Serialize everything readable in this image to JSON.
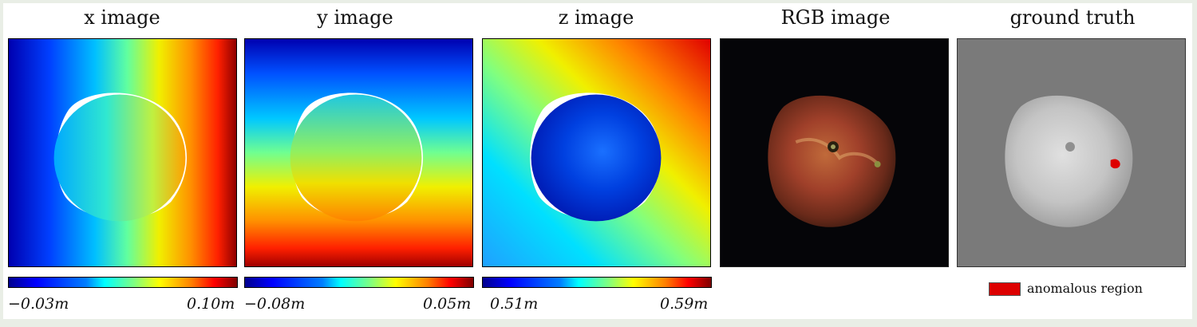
{
  "panels": [
    {
      "title": "x image"
    },
    {
      "title": "y image"
    },
    {
      "title": "z image"
    },
    {
      "title": "RGB image"
    },
    {
      "title": "ground truth"
    }
  ],
  "colorbars": [
    {
      "min_label": "−0.03m",
      "max_label": "0.10m"
    },
    {
      "min_label": "−0.08m",
      "max_label": "0.05m"
    },
    {
      "min_label": "0.51m",
      "max_label": "0.59m"
    }
  ],
  "legend": {
    "label": "anomalous region",
    "color": "#dd0000"
  },
  "colors": {
    "background": "#e9eee6",
    "rgb_background": "#050508",
    "ground_truth_background": "#7a7a7a"
  }
}
